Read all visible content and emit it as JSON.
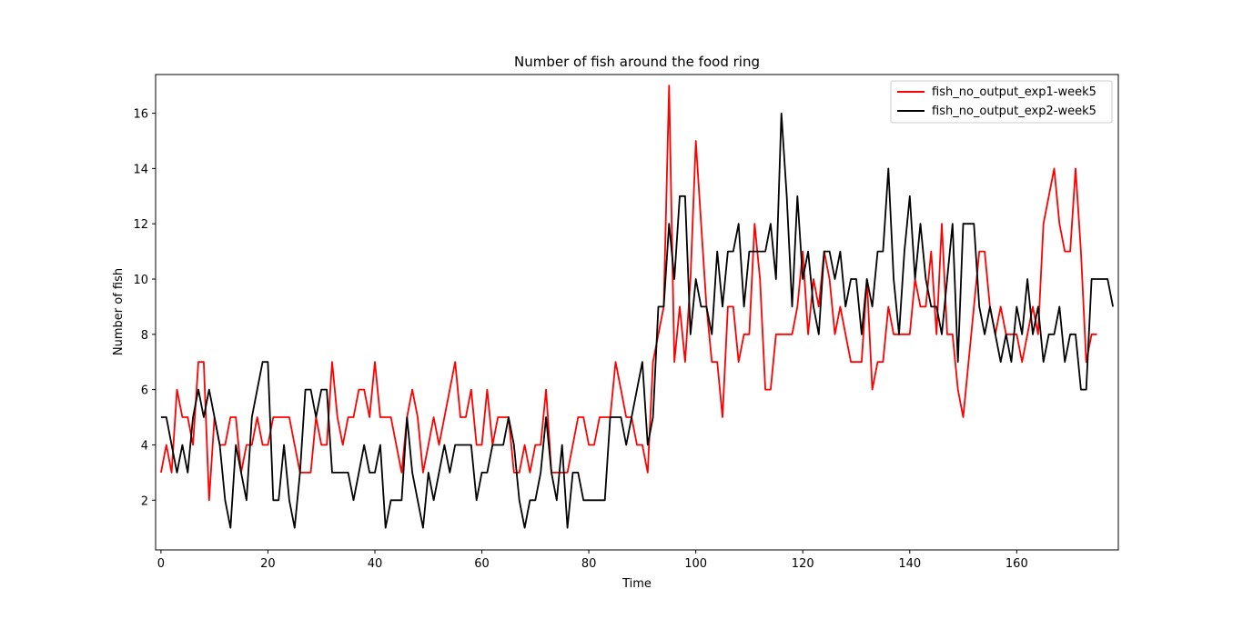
{
  "chart_data": {
    "type": "line",
    "title": "Number of fish around the food ring",
    "xlabel": "Time",
    "ylabel": "Number of fish",
    "xlim": [
      -1,
      179
    ],
    "ylim": [
      0.2,
      17.4
    ],
    "xticks": [
      0,
      20,
      40,
      60,
      80,
      100,
      120,
      140,
      160
    ],
    "yticks": [
      2,
      4,
      6,
      8,
      10,
      12,
      14,
      16
    ],
    "grid": false,
    "legend_position": "top-right",
    "series": [
      {
        "name": "fish_no_output_exp1-week5",
        "color": "#ff0000",
        "values": [
          3,
          4,
          3,
          6,
          5,
          5,
          4,
          7,
          7,
          2,
          5,
          4,
          4,
          5,
          5,
          3,
          4,
          4,
          5,
          4,
          4,
          5,
          5,
          5,
          5,
          4,
          3,
          3,
          3,
          5,
          4,
          4,
          7,
          5,
          4,
          5,
          5,
          6,
          6,
          5,
          7,
          5,
          5,
          5,
          4,
          3,
          5,
          6,
          5,
          3,
          4,
          5,
          4,
          5,
          6,
          7,
          5,
          5,
          6,
          4,
          4,
          6,
          4,
          5,
          5,
          5,
          3,
          3,
          4,
          3,
          4,
          4,
          6,
          3,
          3,
          3,
          3,
          4,
          5,
          5,
          4,
          4,
          5,
          5,
          5,
          7,
          6,
          5,
          5,
          4,
          4,
          3,
          7,
          8,
          9,
          17,
          7,
          9,
          7,
          10,
          15,
          12,
          9,
          7,
          7,
          5,
          9,
          9,
          7,
          8,
          8,
          12,
          10,
          6,
          6,
          8,
          8,
          8,
          8,
          9,
          11,
          8,
          10,
          9,
          11,
          10,
          8,
          9,
          8,
          7,
          7,
          7,
          10,
          6,
          7,
          7,
          9,
          8,
          8,
          8,
          8,
          10,
          9,
          9,
          11,
          8,
          12,
          8,
          8,
          6,
          5,
          7,
          9,
          11,
          11,
          9,
          8,
          9,
          8,
          8,
          8,
          7,
          8,
          9,
          8,
          12,
          13,
          14,
          12,
          11,
          11,
          14,
          11,
          7,
          8,
          8
        ]
      },
      {
        "name": "fish_no_output_exp2-week5",
        "color": "#000000",
        "values": [
          5,
          5,
          4,
          3,
          4,
          3,
          5,
          6,
          5,
          6,
          5,
          4,
          2,
          1,
          4,
          3,
          2,
          5,
          6,
          7,
          7,
          2,
          2,
          4,
          2,
          1,
          3,
          6,
          6,
          5,
          6,
          6,
          3,
          3,
          3,
          3,
          2,
          3,
          4,
          3,
          3,
          4,
          1,
          2,
          2,
          2,
          5,
          3,
          2,
          1,
          3,
          2,
          3,
          4,
          3,
          4,
          4,
          4,
          4,
          2,
          3,
          3,
          4,
          4,
          4,
          5,
          4,
          2,
          1,
          2,
          2,
          3,
          5,
          3,
          2,
          4,
          1,
          3,
          3,
          2,
          2,
          2,
          2,
          2,
          5,
          5,
          5,
          4,
          5,
          6,
          7,
          4,
          5,
          9,
          9,
          12,
          10,
          13,
          13,
          8,
          10,
          9,
          9,
          8,
          11,
          9,
          11,
          11,
          12,
          9,
          11,
          11,
          11,
          11,
          12,
          10,
          16,
          13,
          9,
          13,
          10,
          11,
          9,
          8,
          11,
          11,
          10,
          11,
          9,
          10,
          10,
          8,
          10,
          9,
          11,
          11,
          14,
          10,
          8,
          11,
          13,
          10,
          12,
          10,
          9,
          9,
          8,
          10,
          12,
          7,
          12,
          12,
          12,
          9,
          8,
          9,
          8,
          7,
          8,
          7,
          9,
          8,
          10,
          8,
          9,
          7,
          8,
          8,
          9,
          7,
          8,
          8,
          6,
          6,
          10,
          10,
          10,
          10,
          9
        ]
      }
    ]
  }
}
